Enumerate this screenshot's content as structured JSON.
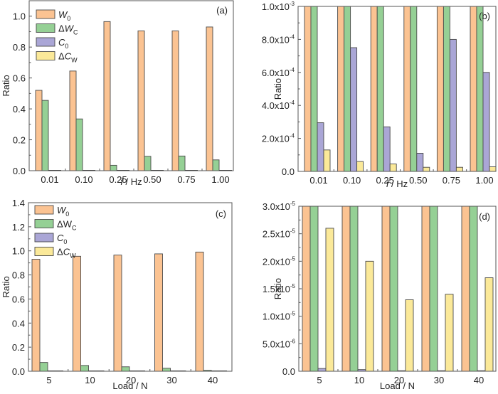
{
  "colors": {
    "W0": "#fbc392",
    "dWc": "#95d095",
    "C0": "#aaa6d6",
    "dCw": "#fbe999",
    "axis": "#555555",
    "text": "#222222"
  },
  "legend": {
    "entries": [
      {
        "key": "W0",
        "base": "W",
        "sub": "0",
        "italic": true,
        "delta": false
      },
      {
        "key": "dWc",
        "base": "W",
        "sub": "C",
        "italic": true,
        "delta": true
      },
      {
        "key": "C0",
        "base": "C",
        "sub": "0",
        "italic": true,
        "delta": false
      },
      {
        "key": "dCw",
        "base": "C",
        "sub": "W",
        "italic": true,
        "delta": true
      }
    ]
  },
  "chart_data": [
    {
      "id": "a",
      "panel_label": "(a)",
      "type": "bar",
      "title": "",
      "xlabel": "f / Hz",
      "xlabel_italic_part": "f",
      "xlabel_rest": " / Hz",
      "ylabel": "Ratio",
      "ylim": [
        0,
        1.1
      ],
      "yticks": [
        0.0,
        0.2,
        0.4,
        0.6,
        0.8,
        1.0
      ],
      "ytick_labels": [
        "0.0",
        "0.2",
        "0.4",
        "0.6",
        "0.8",
        "1.0"
      ],
      "categories": [
        "0.01",
        "0.10",
        "0.25",
        "0.50",
        "0.75",
        "1.00"
      ],
      "legend_visible": true,
      "legend_position": "top-left",
      "series": [
        {
          "name": "W0",
          "values": [
            0.52,
            0.645,
            0.965,
            0.905,
            0.905,
            0.93
          ]
        },
        {
          "name": "ΔWC",
          "values": [
            0.455,
            0.335,
            0.035,
            0.093,
            0.095,
            0.07
          ]
        },
        {
          "name": "C0",
          "values": [
            0.0003,
            0.00075,
            0.00027,
            0.00011,
            0.0008,
            0.0006
          ]
        },
        {
          "name": "ΔCW",
          "values": [
            0.00013,
            6e-05,
            4.5e-05,
            2.5e-05,
            2.5e-05,
            2.8e-05
          ]
        }
      ]
    },
    {
      "id": "b",
      "panel_label": "(b)",
      "type": "bar",
      "title": "",
      "xlabel": "f / Hz",
      "xlabel_italic_part": "f",
      "xlabel_rest": " / Hz",
      "ylabel": "Ratio",
      "ylim": [
        0,
        0.001
      ],
      "yticks": [
        0,
        0.0002,
        0.0004,
        0.0006,
        0.0008,
        0.001
      ],
      "ytick_labels": [
        {
          "m": "0.0",
          "e": ""
        },
        {
          "m": "2.0x10",
          "e": "-4"
        },
        {
          "m": "4.0x10",
          "e": "-4"
        },
        {
          "m": "6.0x10",
          "e": "-4"
        },
        {
          "m": "8.0x10",
          "e": "-4"
        },
        {
          "m": "1.0x10",
          "e": "-3"
        }
      ],
      "categories": [
        "0.01",
        "0.10",
        "0.25",
        "0.50",
        "0.75",
        "1.00"
      ],
      "legend_visible": false,
      "series": [
        {
          "name": "W0",
          "values": [
            0.52,
            0.645,
            0.965,
            0.905,
            0.905,
            0.93
          ]
        },
        {
          "name": "ΔWC",
          "values": [
            0.455,
            0.335,
            0.035,
            0.093,
            0.095,
            0.07
          ]
        },
        {
          "name": "C0",
          "values": [
            0.000295,
            0.00075,
            0.00027,
            0.00011,
            0.0008,
            0.0006
          ]
        },
        {
          "name": "ΔCW",
          "values": [
            0.00013,
            6e-05,
            4.5e-05,
            2.5e-05,
            2.5e-05,
            2.8e-05
          ]
        }
      ]
    },
    {
      "id": "c",
      "panel_label": "(c)",
      "type": "bar",
      "title": "",
      "xlabel": "Load / N",
      "xlabel_italic_part": "",
      "xlabel_rest": "Load / N",
      "ylabel": "Ratio",
      "ylim": [
        0,
        1.4
      ],
      "yticks": [
        0.0,
        0.2,
        0.4,
        0.6,
        0.8,
        1.0,
        1.2,
        1.4
      ],
      "ytick_labels": [
        "0.0",
        "0.2",
        "0.4",
        "0.6",
        "0.8",
        "1.0",
        "1.2",
        "1.4"
      ],
      "categories": [
        "5",
        "10",
        "20",
        "30",
        "40"
      ],
      "legend_visible": true,
      "legend_position": "top-left",
      "series": [
        {
          "name": "W0",
          "values": [
            0.93,
            0.955,
            0.965,
            0.975,
            0.99
          ]
        },
        {
          "name": "ΔWC",
          "values": [
            0.073,
            0.048,
            0.037,
            0.025,
            0.008
          ]
        },
        {
          "name": "C0",
          "values": [
            5e-07,
            3e-07,
            1e-07,
            1e-07,
            1e-07
          ]
        },
        {
          "name": "ΔCW",
          "values": [
            2.6e-05,
            2e-05,
            1.3e-05,
            1.4e-05,
            1.7e-05
          ]
        }
      ]
    },
    {
      "id": "d",
      "panel_label": "(d)",
      "type": "bar",
      "title": "",
      "xlabel": "Load / N",
      "xlabel_italic_part": "",
      "xlabel_rest": "Load / N",
      "ylabel": "Ratio",
      "ylim": [
        0,
        3e-05
      ],
      "yticks": [
        0,
        5e-06,
        1e-05,
        1.5e-05,
        2e-05,
        2.5e-05,
        3e-05
      ],
      "ytick_labels": [
        {
          "m": "0.0",
          "e": ""
        },
        {
          "m": "5.0x10",
          "e": "-6"
        },
        {
          "m": "1.0x10",
          "e": "-5"
        },
        {
          "m": "1.5x10",
          "e": "-5"
        },
        {
          "m": "2.0x10",
          "e": "-5"
        },
        {
          "m": "2.5x10",
          "e": "-5"
        },
        {
          "m": "3.0x10",
          "e": "-5"
        }
      ],
      "categories": [
        "5",
        "10",
        "20",
        "30",
        "40"
      ],
      "legend_visible": false,
      "series": [
        {
          "name": "W0",
          "values": [
            0.93,
            0.955,
            0.965,
            0.975,
            0.99
          ]
        },
        {
          "name": "ΔWC",
          "values": [
            0.073,
            0.048,
            0.037,
            0.025,
            0.008
          ]
        },
        {
          "name": "C0",
          "values": [
            5e-07,
            3e-07,
            1e-07,
            1e-07,
            1e-07
          ]
        },
        {
          "name": "ΔCW",
          "values": [
            2.6e-05,
            2e-05,
            1.3e-05,
            1.4e-05,
            1.7e-05
          ]
        }
      ]
    }
  ]
}
